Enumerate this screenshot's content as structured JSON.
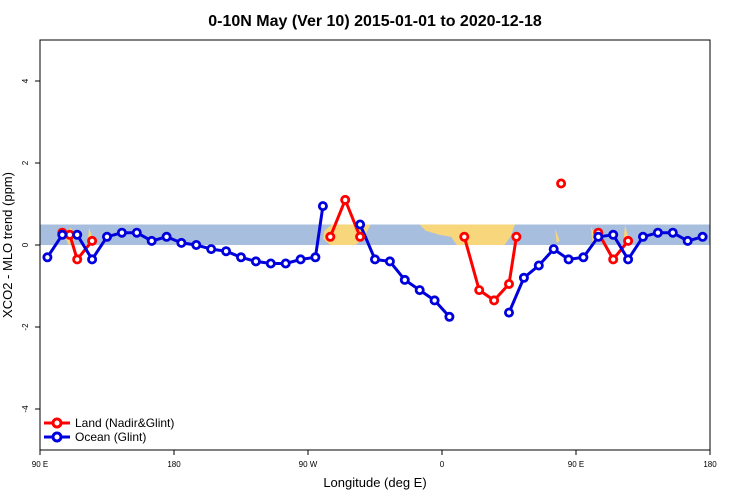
{
  "chart_data": {
    "type": "line",
    "title": "0-10N May (Ver 10)   2015-01-01 to 2020-12-18",
    "xlabel": "Longitude (deg E)",
    "ylabel": "XCO2 - MLO trend (ppm)",
    "xlim": [
      0,
      450
    ],
    "ylim": [
      -5,
      5
    ],
    "x_ticks": [
      {
        "x": 0,
        "label": "90 E"
      },
      {
        "x": 90,
        "label": "180"
      },
      {
        "x": 180,
        "label": "90 W"
      },
      {
        "x": 270,
        "label": "0"
      },
      {
        "x": 360,
        "label": "90 E"
      },
      {
        "x": 450,
        "label": "180"
      }
    ],
    "y_ticks": [
      {
        "y": -4,
        "label": "-4"
      },
      {
        "y": -2,
        "label": "-2"
      },
      {
        "y": 0,
        "label": "0"
      },
      {
        "y": 2,
        "label": "2"
      },
      {
        "y": 4,
        "label": "4"
      }
    ],
    "land_band": {
      "y_min": 0,
      "y_max": 0.5,
      "ocean_color": "#a7bedf",
      "land_color": "#f7d67c"
    },
    "grid": false,
    "legend_position": "bottom-left",
    "series": [
      {
        "name": "Land (Nadir&Glint)",
        "color": "#ff0000",
        "segments": [
          [
            [
              15,
              0.3
            ],
            [
              20,
              0.25
            ],
            [
              25,
              -0.35
            ],
            [
              35,
              0.1
            ]
          ],
          [
            [
              195,
              0.2
            ],
            [
              205,
              1.1
            ],
            [
              215,
              0.2
            ]
          ],
          [
            [
              285,
              0.2
            ],
            [
              295,
              -1.1
            ],
            [
              305,
              -1.35
            ],
            [
              315,
              -0.95
            ],
            [
              320,
              0.2
            ]
          ],
          [
            [
              350,
              1.5
            ]
          ],
          [
            [
              375,
              0.3
            ],
            [
              385,
              -0.35
            ],
            [
              395,
              0.1
            ]
          ]
        ]
      },
      {
        "name": "Ocean (Glint)",
        "color": "#0000dd",
        "segments": [
          [
            [
              5,
              -0.3
            ],
            [
              15,
              0.25
            ],
            [
              25,
              0.25
            ],
            [
              35,
              -0.35
            ],
            [
              45,
              0.2
            ],
            [
              55,
              0.3
            ],
            [
              65,
              0.3
            ],
            [
              75,
              0.1
            ],
            [
              85,
              0.2
            ],
            [
              95,
              0.05
            ],
            [
              105,
              0
            ],
            [
              115,
              -0.1
            ],
            [
              125,
              -0.15
            ],
            [
              135,
              -0.3
            ],
            [
              145,
              -0.4
            ],
            [
              155,
              -0.45
            ],
            [
              165,
              -0.45
            ],
            [
              175,
              -0.35
            ],
            [
              185,
              -0.3
            ],
            [
              190,
              0.95
            ]
          ],
          [
            [
              215,
              0.5
            ],
            [
              225,
              -0.35
            ],
            [
              235,
              -0.4
            ],
            [
              245,
              -0.85
            ],
            [
              255,
              -1.1
            ],
            [
              265,
              -1.35
            ],
            [
              275,
              -1.75
            ]
          ],
          [
            [
              315,
              -1.65
            ],
            [
              325,
              -0.8
            ],
            [
              335,
              -0.5
            ],
            [
              345,
              -0.1
            ],
            [
              355,
              -0.35
            ],
            [
              365,
              -0.3
            ],
            [
              375,
              0.2
            ],
            [
              385,
              0.25
            ],
            [
              395,
              -0.35
            ],
            [
              405,
              0.2
            ],
            [
              415,
              0.3
            ],
            [
              425,
              0.3
            ],
            [
              435,
              0.1
            ],
            [
              445,
              0.2
            ]
          ]
        ]
      }
    ]
  }
}
